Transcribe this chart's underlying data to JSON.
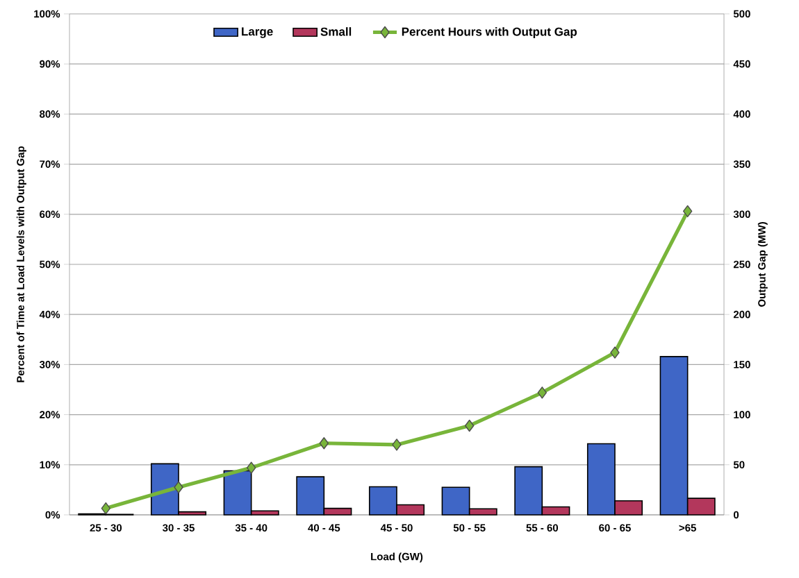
{
  "chart_data": {
    "type": "bar",
    "categories": [
      "25 - 30",
      "30 - 35",
      "35 - 40",
      "40 - 45",
      "45 - 50",
      "50 - 55",
      "55 - 60",
      "60 - 65",
      ">65"
    ],
    "xlabel": "Load (GW)",
    "ylabel": "Percent of Time at Load Levels with Output Gap",
    "y2label": "Output Gap (MW)",
    "series": [
      {
        "name": "Large",
        "axis": "y2",
        "color": "#3f66c6",
        "values": [
          1,
          51,
          44,
          38,
          28,
          27.5,
          48,
          71,
          158
        ]
      },
      {
        "name": "Small",
        "axis": "y2",
        "color": "#b3375c",
        "values": [
          0.5,
          3,
          4,
          6.5,
          10,
          6,
          8,
          14,
          16.5
        ]
      },
      {
        "name": "Percent Hours with Output Gap",
        "type": "line",
        "axis": "y",
        "color": "#78b53a",
        "marker": "diamond",
        "values": [
          1.3,
          5.5,
          9.4,
          14.3,
          14.0,
          17.8,
          24.4,
          32.4,
          60.6
        ]
      }
    ],
    "ylim": [
      0,
      100
    ],
    "yticks": [
      {
        "value": 0,
        "label": "0%"
      },
      {
        "value": 10,
        "label": "10%"
      },
      {
        "value": 20,
        "label": "20%"
      },
      {
        "value": 30,
        "label": "30%"
      },
      {
        "value": 40,
        "label": "40%"
      },
      {
        "value": 50,
        "label": "50%"
      },
      {
        "value": 60,
        "label": "60%"
      },
      {
        "value": 70,
        "label": "70%"
      },
      {
        "value": 80,
        "label": "80%"
      },
      {
        "value": 90,
        "label": "90%"
      },
      {
        "value": 100,
        "label": "100%"
      }
    ],
    "y2lim": [
      0,
      500
    ],
    "y2ticks": [
      0,
      50,
      100,
      150,
      200,
      250,
      300,
      350,
      400,
      450,
      500
    ],
    "grid": "y",
    "legend": "top"
  }
}
